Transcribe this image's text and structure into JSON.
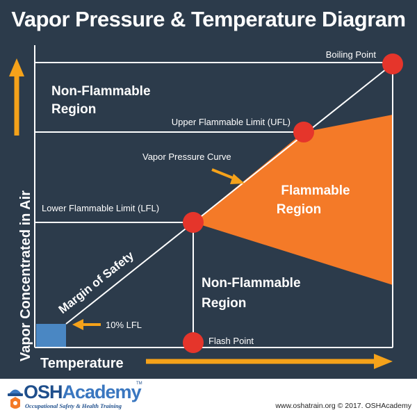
{
  "title": "Vapor Pressure & Temperature Diagram",
  "axes": {
    "y_label": "Vapor Concentrated in Air",
    "x_label": "Temperature"
  },
  "labels": {
    "boiling_point": "Boiling Point",
    "ufl": "Upper Flammable Limit (UFL)",
    "vapor_pressure_curve": "Vapor Pressure Curve",
    "lfl": "Lower Flammable Limit (LFL)",
    "margin_of_safety": "Margin of Safety",
    "ten_percent_lfl": "10% LFL",
    "flash_point": "Flash Point"
  },
  "regions": {
    "non_flammable_top_line1": "Non-Flammable",
    "non_flammable_top_line2": "Region",
    "flammable_line1": "Flammable",
    "flammable_line2": "Region",
    "non_flammable_bottom_line1": "Non-Flammable",
    "non_flammable_bottom_line2": "Region"
  },
  "colors": {
    "background": "#2c3b4b",
    "grid_line": "#ffffff",
    "flammable_fill": "#f47a28",
    "point_fill": "#e5352b",
    "axis_arrow": "#f5a21a",
    "margin_box": "#4a87c3"
  },
  "footer": {
    "logo_name_part1": "OSH",
    "logo_name_part2": "Academy",
    "logo_tagline": "Occupational Safety & Health Training",
    "logo_tm": "TM",
    "credit": "www.oshatrain.org © 2017. OSHAcademy"
  }
}
